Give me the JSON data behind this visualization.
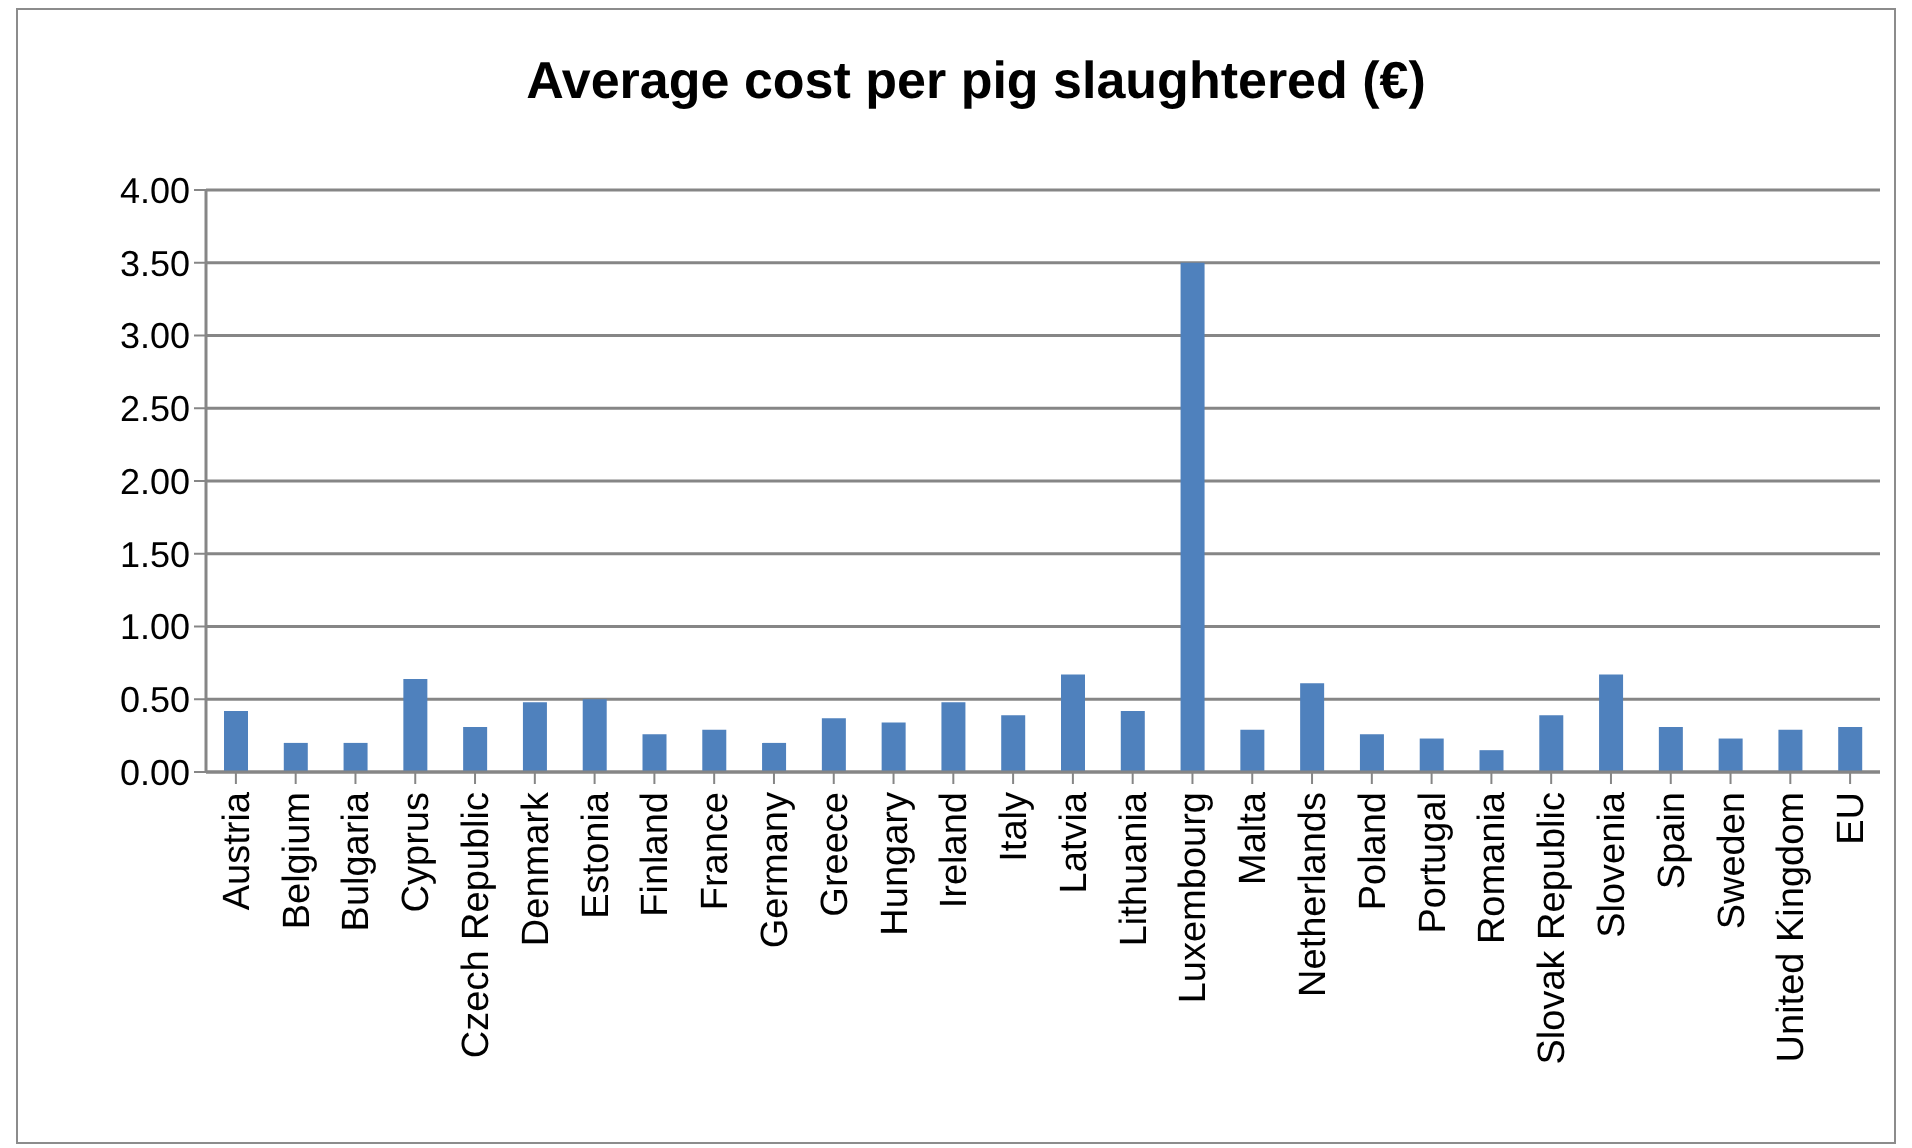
{
  "chart_data": {
    "type": "bar",
    "title": "Average cost per pig slaughtered (€)",
    "categories": [
      "Austria",
      "Belgium",
      "Bulgaria",
      "Cyprus",
      "Czech Republic",
      "Denmark",
      "Estonia",
      "Finland",
      "France",
      "Germany",
      "Greece",
      "Hungary",
      "Ireland",
      "Italy",
      "Latvia",
      "Lithuania",
      "Luxembourg",
      "Malta",
      "Netherlands",
      "Poland",
      "Portugal",
      "Romania",
      "Slovak Republic",
      "Slovenia",
      "Spain",
      "Sweden",
      "United Kingdom",
      "EU"
    ],
    "values": [
      0.42,
      0.2,
      0.2,
      0.64,
      0.31,
      0.48,
      0.5,
      0.26,
      0.29,
      0.2,
      0.37,
      0.34,
      0.48,
      0.39,
      0.67,
      0.42,
      3.5,
      0.29,
      0.61,
      0.26,
      0.23,
      0.15,
      0.39,
      0.67,
      0.31,
      0.23,
      0.29,
      0.31
    ],
    "color": "#4f81bd",
    "ylim": [
      0,
      4
    ],
    "yticks": [
      {
        "value": 0,
        "label": "0.00"
      },
      {
        "value": 0.5,
        "label": "0.50"
      },
      {
        "value": 1,
        "label": "1.00"
      },
      {
        "value": 1.5,
        "label": "1.50"
      },
      {
        "value": 2,
        "label": "2.00"
      },
      {
        "value": 2.5,
        "label": "2.50"
      },
      {
        "value": 3,
        "label": "3.00"
      },
      {
        "value": 3.5,
        "label": "3.50"
      },
      {
        "value": 4,
        "label": "4.00"
      }
    ],
    "grid": "y"
  }
}
